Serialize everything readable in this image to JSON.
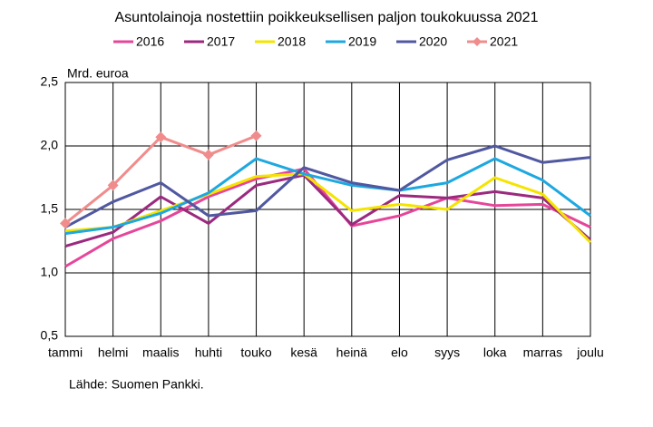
{
  "chart_data": {
    "type": "line",
    "title": "Asuntolainoja nostettiin poikkeuksellisen paljon toukokuussa 2021",
    "y_axis_label": "Mrd. euroa",
    "source": "Lähde: Suomen Pankki.",
    "categories": [
      "tammi",
      "helmi",
      "maalis",
      "huhti",
      "touko",
      "kesä",
      "heinä",
      "elo",
      "syys",
      "loka",
      "marras",
      "joulu"
    ],
    "series": [
      {
        "name": "2016",
        "color": "#e6469a",
        "values": [
          1.05,
          1.27,
          1.41,
          1.6,
          1.74,
          1.82,
          1.37,
          1.45,
          1.59,
          1.53,
          1.54,
          1.36
        ]
      },
      {
        "name": "2017",
        "color": "#9b2a7f",
        "values": [
          1.21,
          1.32,
          1.6,
          1.39,
          1.69,
          1.77,
          1.38,
          1.61,
          1.59,
          1.64,
          1.59,
          1.26
        ]
      },
      {
        "name": "2018",
        "color": "#f5e400",
        "values": [
          1.33,
          1.36,
          1.49,
          1.62,
          1.76,
          1.78,
          1.49,
          1.54,
          1.5,
          1.75,
          1.62,
          1.24
        ]
      },
      {
        "name": "2019",
        "color": "#1ea8e0",
        "values": [
          1.31,
          1.36,
          1.47,
          1.63,
          1.9,
          1.78,
          1.69,
          1.65,
          1.71,
          1.9,
          1.73,
          1.45
        ]
      },
      {
        "name": "2020",
        "color": "#5058a0",
        "values": [
          1.36,
          1.56,
          1.71,
          1.45,
          1.49,
          1.83,
          1.71,
          1.65,
          1.89,
          2.0,
          1.87,
          1.91
        ]
      },
      {
        "name": "2021",
        "color": "#f08c8c",
        "marker": "diamond",
        "values": [
          1.39,
          1.69,
          2.07,
          1.93,
          2.08,
          null,
          null,
          null,
          null,
          null,
          null,
          null
        ]
      }
    ],
    "ylim": [
      0.5,
      2.5
    ],
    "yticks": [
      {
        "value": 0.5,
        "label": "0,5"
      },
      {
        "value": 1.0,
        "label": "1,0"
      },
      {
        "value": 1.5,
        "label": "1,5"
      },
      {
        "value": 2.0,
        "label": "2,0"
      },
      {
        "value": 2.5,
        "label": "2,5"
      }
    ],
    "grid": true,
    "legend": "top"
  }
}
